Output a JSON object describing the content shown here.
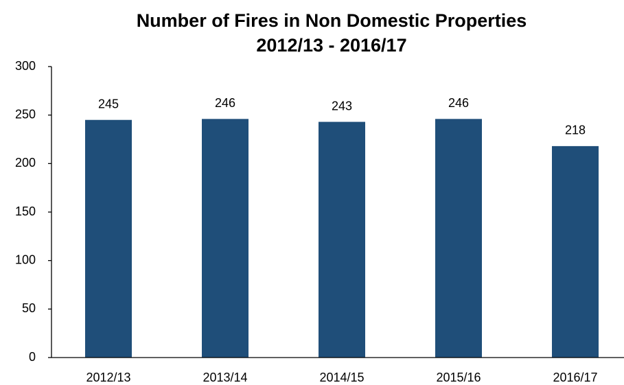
{
  "chart_data": {
    "type": "bar",
    "title": [
      "Number of Fires in Non Domestic Properties",
      "2012/13 - 2016/17"
    ],
    "categories": [
      "2012/13",
      "2013/14",
      "2014/15",
      "2015/16",
      "2016/17"
    ],
    "values": [
      245,
      246,
      243,
      246,
      218
    ],
    "color": "#1f4e79",
    "ylim": [
      0,
      300
    ],
    "yticks": [
      0,
      50,
      100,
      150,
      200,
      250,
      300
    ],
    "grid": false,
    "data_labels": true
  }
}
